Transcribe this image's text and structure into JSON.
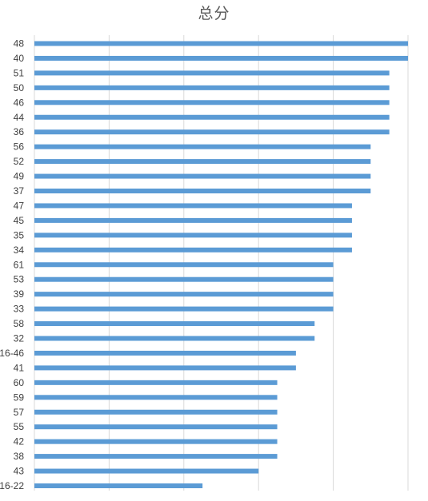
{
  "chart_data": {
    "type": "bar",
    "orientation": "horizontal",
    "title": "总分",
    "categories": [
      "48",
      "40",
      "51",
      "50",
      "46",
      "44",
      "36",
      "56",
      "52",
      "49",
      "37",
      "47",
      "45",
      "35",
      "34",
      "61",
      "53",
      "39",
      "33",
      "58",
      "32",
      "16-46",
      "41",
      "60",
      "59",
      "57",
      "55",
      "42",
      "38",
      "43",
      "16-22"
    ],
    "values": [
      100,
      100,
      95,
      95,
      95,
      95,
      95,
      90,
      90,
      90,
      90,
      85,
      85,
      85,
      85,
      80,
      80,
      80,
      80,
      75,
      75,
      70,
      70,
      65,
      65,
      65,
      65,
      65,
      65,
      60,
      45
    ],
    "xlim": [
      0,
      100
    ],
    "grid": true,
    "legend": "none",
    "bar_color": "#5B9BD5",
    "grid_color": "#D9D9D9",
    "label_color": "#404040"
  }
}
